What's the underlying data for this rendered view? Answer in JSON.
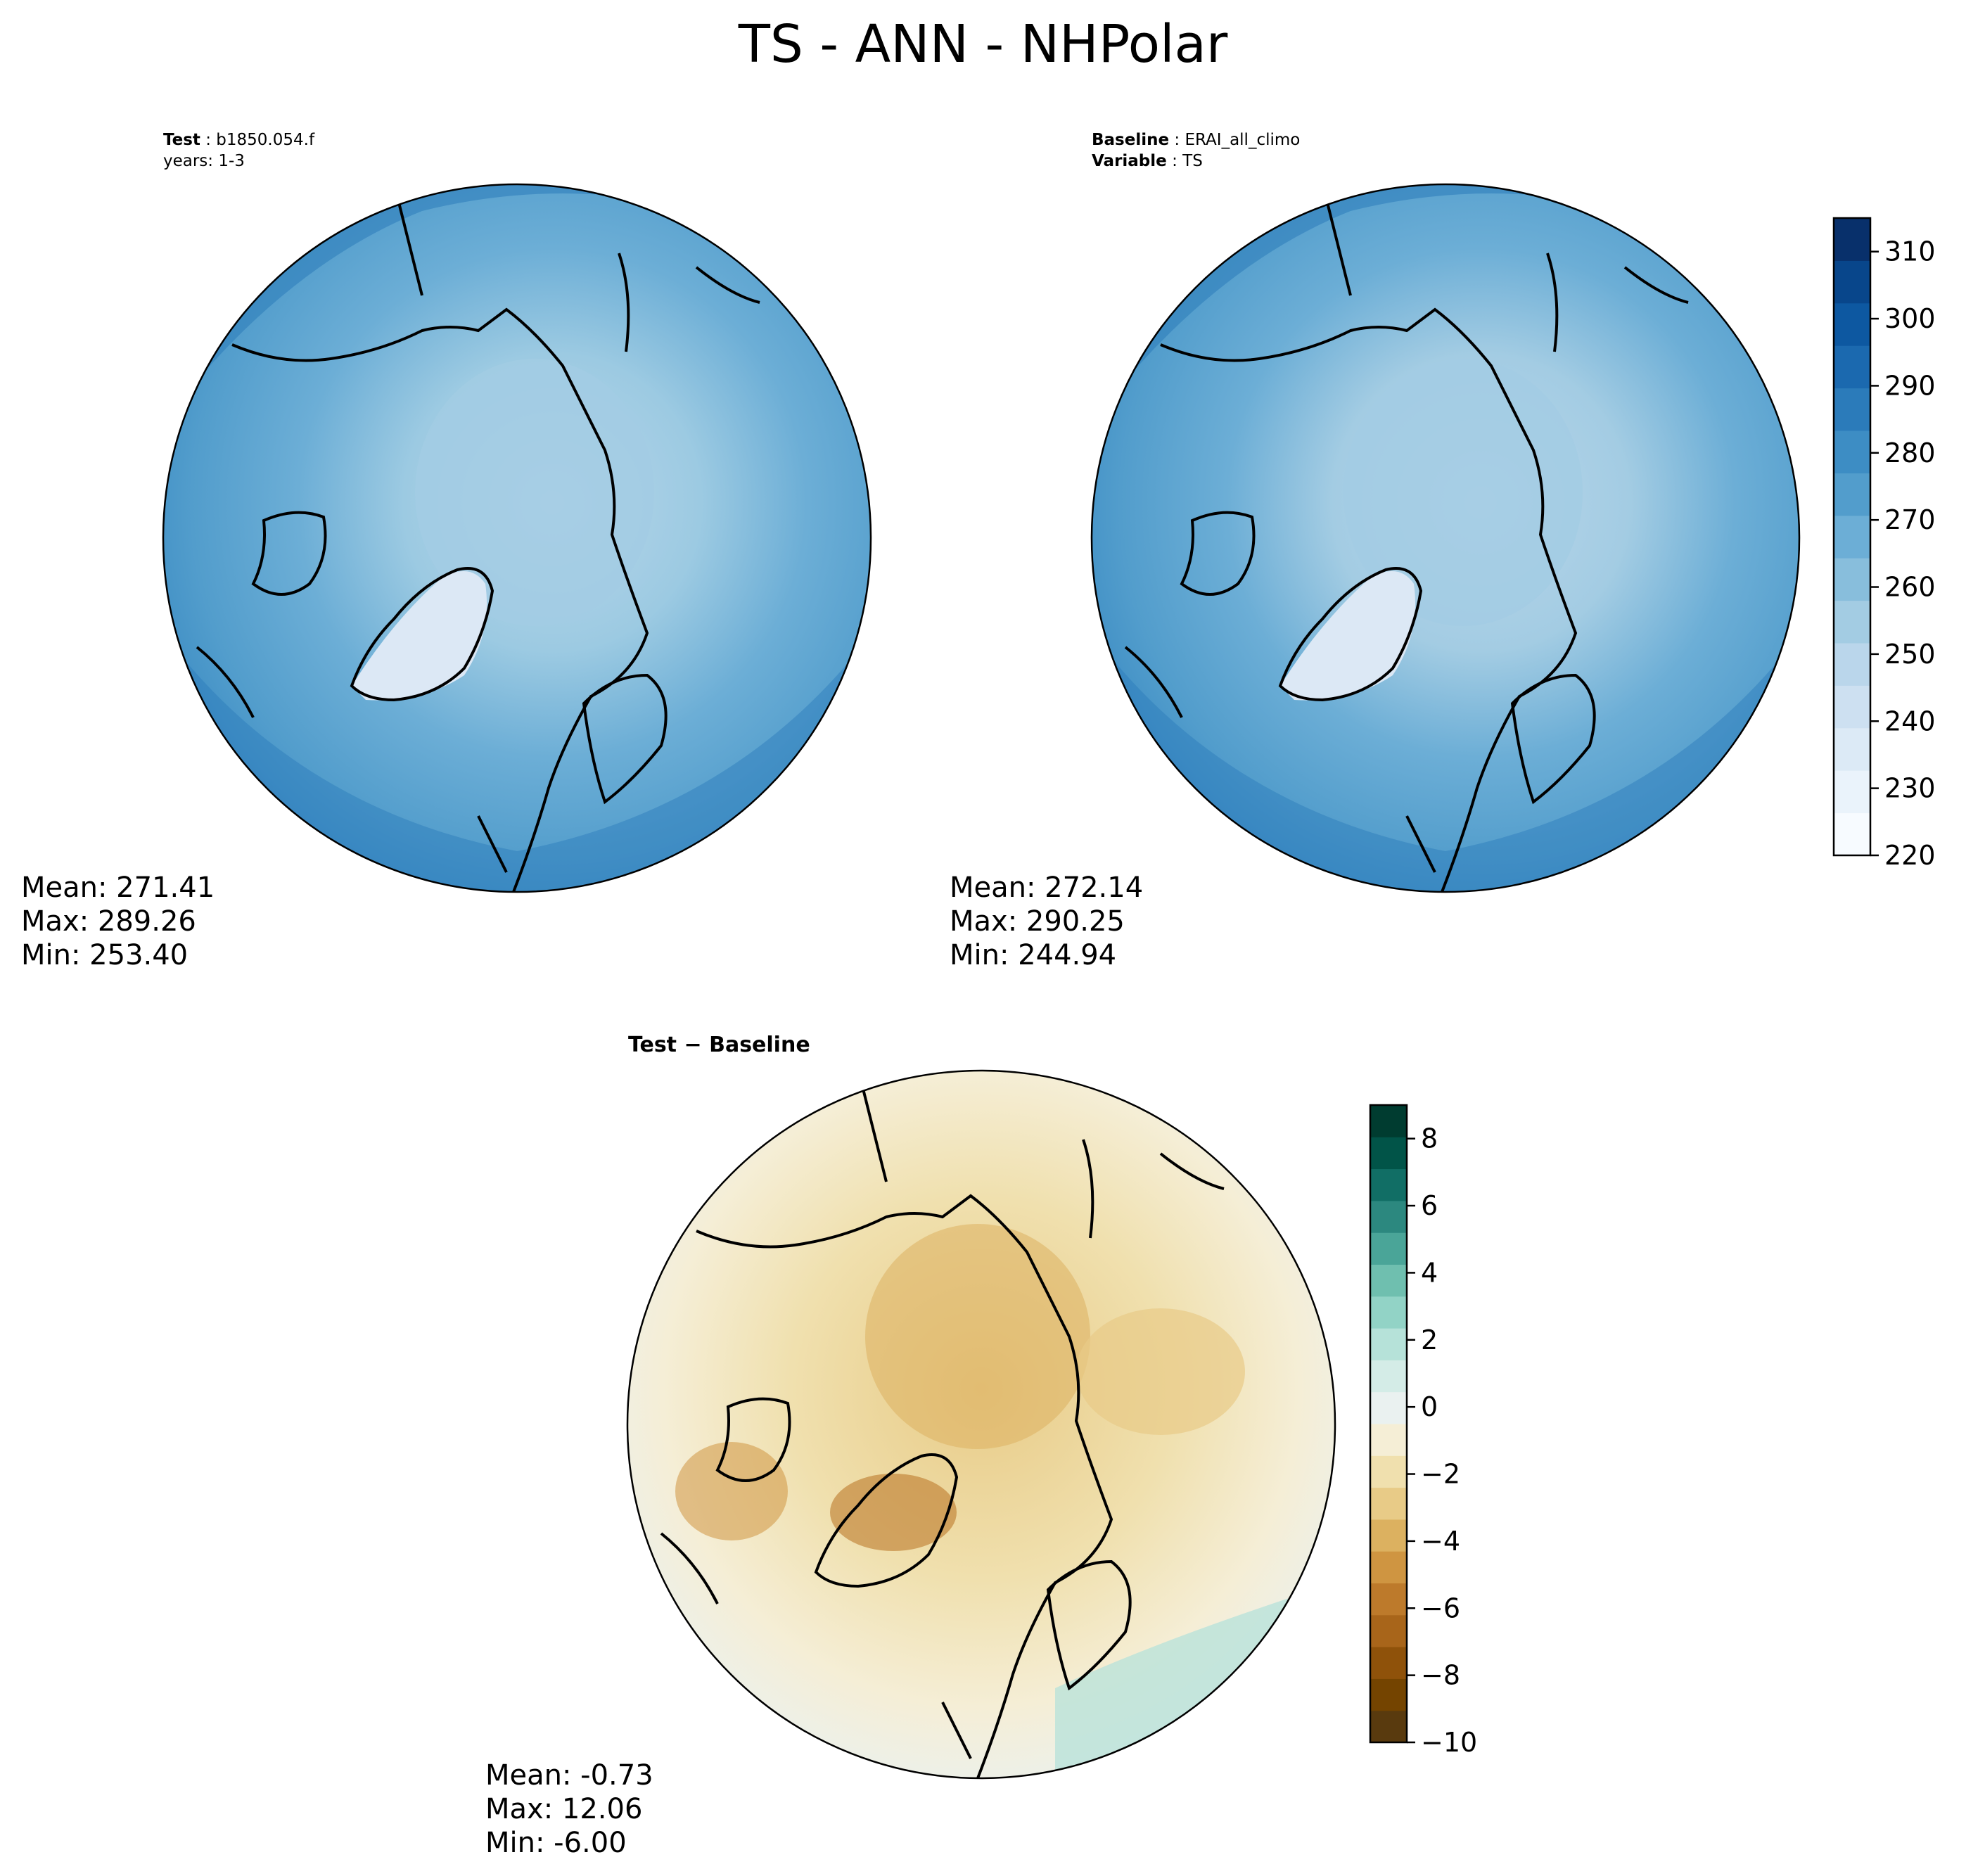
{
  "title": "TS - ANN - NHPolar",
  "panels": {
    "test": {
      "label_key": "Test",
      "label_value": "b1850.054.f",
      "label_line2": "years: 1-3",
      "mean": "Mean: 271.41",
      "max": "Max: 289.26",
      "min": "Min: 253.40"
    },
    "baseline": {
      "label_key": "Baseline",
      "label_value": "ERAI_all_climo",
      "label2_key": "Variable",
      "label2_value": "TS",
      "mean": "Mean: 272.14",
      "max": "Max: 290.25",
      "min": "Min: 244.94"
    },
    "difference": {
      "title_left": "Test",
      "title_mid": "−",
      "title_right": "Baseline",
      "mean": "Mean: -0.73",
      "max": "Max: 12.06",
      "min": "Min: -6.00"
    }
  },
  "colorbars": {
    "ts": {
      "ticks": [
        "220",
        "230",
        "240",
        "250",
        "260",
        "270",
        "280",
        "290",
        "300",
        "310"
      ],
      "tick_values": [
        220,
        230,
        240,
        250,
        260,
        270,
        280,
        290,
        300,
        310
      ],
      "range": [
        220,
        315
      ],
      "colors": [
        "#f7fbff",
        "#eaf3fb",
        "#dceaf6",
        "#cde0f1",
        "#bad6eb",
        "#a3cce3",
        "#88bedc",
        "#6caed6",
        "#529dcc",
        "#3d8dc4",
        "#2b7bba",
        "#1b69af",
        "#0d58a1",
        "#08468b",
        "#08306b"
      ]
    },
    "diff": {
      "ticks": [
        "−10",
        "−8",
        "−6",
        "−4",
        "−2",
        "0",
        "2",
        "4",
        "6",
        "8"
      ],
      "tick_values": [
        -10,
        -8,
        -6,
        -4,
        -2,
        0,
        2,
        4,
        6,
        8
      ],
      "range": [
        -10,
        9
      ],
      "colors": [
        "#593a0e",
        "#744400",
        "#8f520a",
        "#a8651a",
        "#bd7a2b",
        "#cf9541",
        "#dcb160",
        "#e8cb87",
        "#f0e0ae",
        "#f5eed6",
        "#eaf1f0",
        "#d4ece7",
        "#b6e2d9",
        "#92d3c6",
        "#6fbfaf",
        "#4aa598",
        "#2c887f",
        "#116e65",
        "#015448",
        "#003c30"
      ]
    }
  },
  "map_colors": {
    "ocean_outer": "#3d8dc4",
    "ocean_mid": "#529dcc",
    "arctic": "#9ccae2",
    "greenland": "#dce8f5",
    "diff_neutral": "#f5eed6",
    "diff_brown": "#dcb160",
    "diff_teal": "#b6e2d9"
  }
}
